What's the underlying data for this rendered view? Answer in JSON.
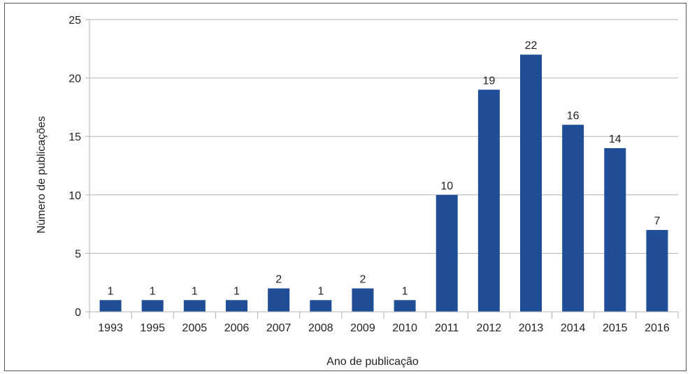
{
  "chart_data": {
    "type": "bar",
    "title": "",
    "xlabel": "Ano de publicação",
    "ylabel": "Número de publicações",
    "categories": [
      "1993",
      "1995",
      "2005",
      "2006",
      "2007",
      "2008",
      "2009",
      "2010",
      "2011",
      "2012",
      "2013",
      "2014",
      "2015",
      "2016"
    ],
    "values": [
      1,
      1,
      1,
      1,
      2,
      1,
      2,
      1,
      10,
      19,
      22,
      16,
      14,
      7
    ],
    "ylim": [
      0,
      25
    ],
    "yticks": [
      0,
      5,
      10,
      15,
      20,
      25
    ],
    "grid": true,
    "legend": "none",
    "bar_color": "#1f4e97",
    "grid_color": "#b3b3b3",
    "show_data_labels": true
  }
}
